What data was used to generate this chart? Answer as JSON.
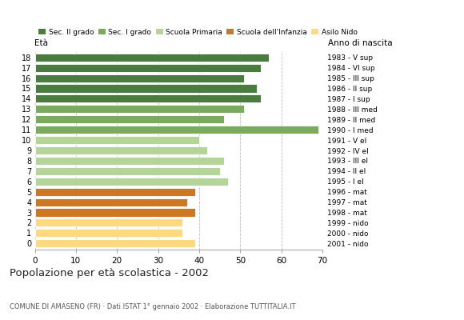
{
  "ages": [
    18,
    17,
    16,
    15,
    14,
    13,
    12,
    11,
    10,
    9,
    8,
    7,
    6,
    5,
    4,
    3,
    2,
    1,
    0
  ],
  "values": [
    57,
    55,
    51,
    54,
    55,
    51,
    46,
    69,
    40,
    42,
    46,
    45,
    47,
    39,
    37,
    39,
    36,
    36,
    39
  ],
  "anno_nascita": [
    "1983 - V sup",
    "1984 - VI sup",
    "1985 - III sup",
    "1986 - II sup",
    "1987 - I sup",
    "1988 - III med",
    "1989 - II med",
    "1990 - I med",
    "1991 - V el",
    "1992 - IV el",
    "1993 - III el",
    "1994 - II el",
    "1995 - I el",
    "1996 - mat",
    "1997 - mat",
    "1998 - mat",
    "1999 - nido",
    "2000 - nido",
    "2001 - nido"
  ],
  "colors": [
    "#4a7c3f",
    "#4a7c3f",
    "#4a7c3f",
    "#4a7c3f",
    "#4a7c3f",
    "#7aab5c",
    "#7aab5c",
    "#7aab5c",
    "#b5d49a",
    "#b5d49a",
    "#b5d49a",
    "#b5d49a",
    "#b5d49a",
    "#cc7722",
    "#cc7722",
    "#cc7722",
    "#ffd980",
    "#ffd980",
    "#ffd980"
  ],
  "legend_labels": [
    "Sec. II grado",
    "Sec. I grado",
    "Scuola Primaria",
    "Scuola dell'Infanzia",
    "Asilo Nido"
  ],
  "legend_colors": [
    "#4a7c3f",
    "#7aab5c",
    "#b5d49a",
    "#cc7722",
    "#ffd980"
  ],
  "title": "Popolazione per età scolastica - 2002",
  "subtitle": "COMUNE DI AMASENO (FR) · Dati ISTAT 1° gennaio 2002 · Elaborazione TUTTITALIA.IT",
  "xlabel_left": "Età",
  "xlabel_right": "Anno di nascita",
  "xlim": [
    0,
    70
  ],
  "xticks": [
    0,
    10,
    20,
    30,
    40,
    50,
    60,
    70
  ],
  "background_color": "#ffffff",
  "grid_color": "#bbbbbb",
  "bar_height": 0.78
}
